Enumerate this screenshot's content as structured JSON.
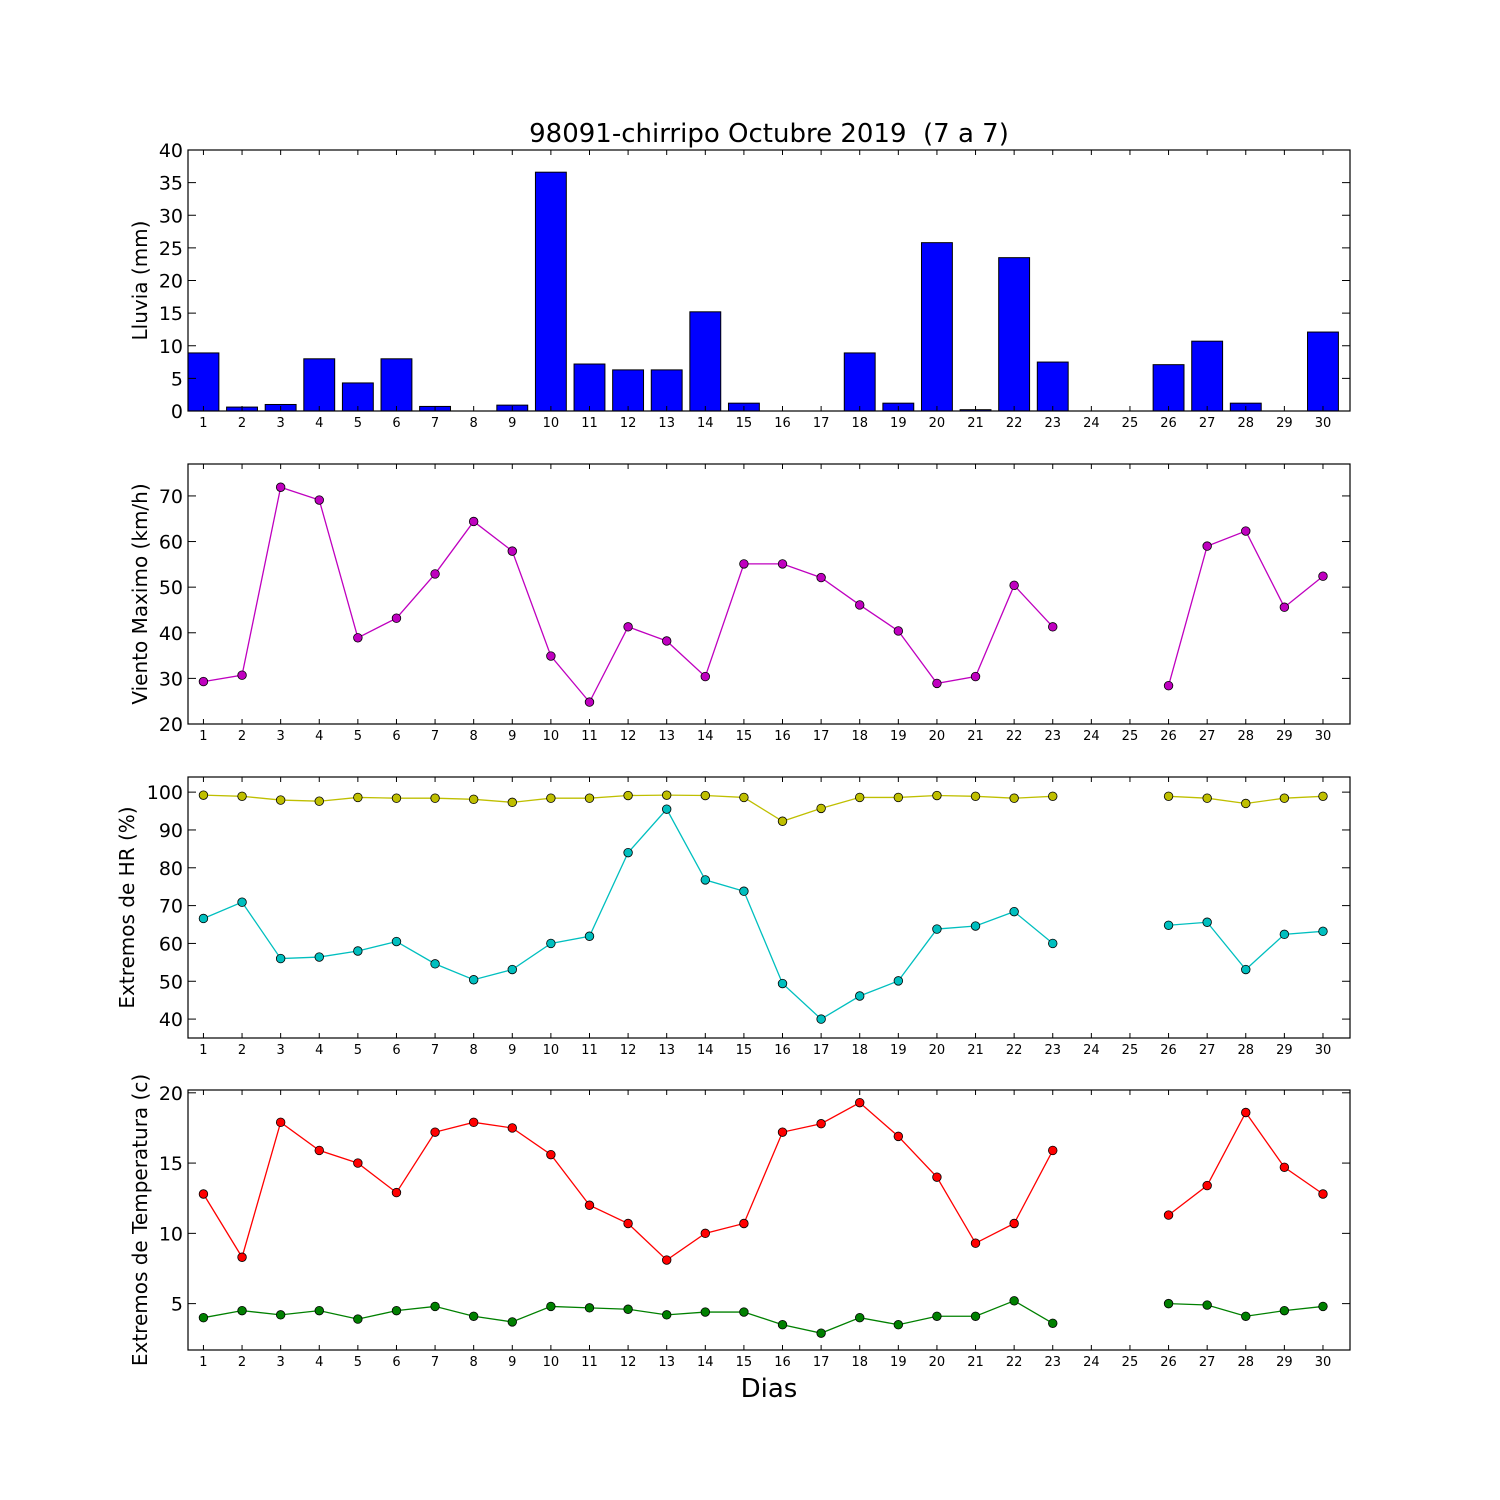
{
  "figure_title": "98091-chirripo Octubre 2019  (7 a 7)",
  "x_label": "Dias",
  "chart_data": [
    {
      "type": "bar",
      "ylabel": "Lluvia (mm)",
      "ylim": [
        0,
        40
      ],
      "yticks": [
        0,
        5,
        10,
        15,
        20,
        25,
        30,
        35,
        40
      ],
      "categories": [
        "1",
        "2",
        "3",
        "4",
        "5",
        "6",
        "7",
        "8",
        "9",
        "10",
        "11",
        "12",
        "13",
        "14",
        "15",
        "16",
        "17",
        "18",
        "19",
        "20",
        "21",
        "22",
        "23",
        "24",
        "25",
        "26",
        "27",
        "28",
        "29",
        "30"
      ],
      "values": [
        8.9,
        0.6,
        1.0,
        8.0,
        4.3,
        8.0,
        0.7,
        0.0,
        0.9,
        36.6,
        7.2,
        6.3,
        6.3,
        15.2,
        1.2,
        0.0,
        0.0,
        8.9,
        1.2,
        25.8,
        0.2,
        23.5,
        7.5,
        0.0,
        0.0,
        7.1,
        10.7,
        1.2,
        0.0,
        12.1
      ],
      "color": "#0000ff"
    },
    {
      "type": "line",
      "ylabel": "Viento Maximo (km/h)",
      "ylim": [
        20,
        77
      ],
      "yticks": [
        20,
        30,
        40,
        50,
        60,
        70
      ],
      "x": [
        "1",
        "2",
        "3",
        "4",
        "5",
        "6",
        "7",
        "8",
        "9",
        "10",
        "11",
        "12",
        "13",
        "14",
        "15",
        "16",
        "17",
        "18",
        "19",
        "20",
        "21",
        "22",
        "23",
        "24",
        "25",
        "26",
        "27",
        "28",
        "29",
        "30"
      ],
      "series": [
        {
          "color": "#bf00bf",
          "values": [
            29.3,
            30.7,
            71.9,
            69.1,
            38.9,
            43.2,
            52.9,
            64.4,
            57.9,
            34.9,
            24.8,
            41.3,
            38.2,
            30.4,
            55.1,
            55.1,
            52.1,
            46.1,
            40.4,
            28.9,
            30.4,
            50.4,
            41.3,
            null,
            null,
            28.4,
            59.0,
            62.3,
            45.6,
            52.4
          ]
        }
      ]
    },
    {
      "type": "line",
      "ylabel": "Extremos de HR (%)",
      "ylim": [
        35,
        104
      ],
      "yticks": [
        40,
        50,
        60,
        70,
        80,
        90,
        100
      ],
      "x": [
        "1",
        "2",
        "3",
        "4",
        "5",
        "6",
        "7",
        "8",
        "9",
        "10",
        "11",
        "12",
        "13",
        "14",
        "15",
        "16",
        "17",
        "18",
        "19",
        "20",
        "21",
        "22",
        "23",
        "24",
        "25",
        "26",
        "27",
        "28",
        "29",
        "30"
      ],
      "series": [
        {
          "color": "#bfbf00",
          "values": [
            99.2,
            98.9,
            97.9,
            97.6,
            98.6,
            98.4,
            98.4,
            98.1,
            97.3,
            98.4,
            98.4,
            99.1,
            99.2,
            99.1,
            98.6,
            92.3,
            95.7,
            98.6,
            98.6,
            99.1,
            98.9,
            98.4,
            98.9,
            null,
            null,
            98.9,
            98.4,
            97.0,
            98.4,
            98.9
          ]
        },
        {
          "color": "#00bfbf",
          "values": [
            66.6,
            70.9,
            56.0,
            56.4,
            58.0,
            60.5,
            54.6,
            50.4,
            53.1,
            60.0,
            61.9,
            84.0,
            95.5,
            76.8,
            73.8,
            49.4,
            40.0,
            46.1,
            50.1,
            63.8,
            64.6,
            68.4,
            60.0,
            null,
            null,
            64.8,
            65.6,
            53.1,
            62.4,
            63.2
          ]
        }
      ]
    },
    {
      "type": "line",
      "ylabel": "Extremos de Temperatura (c)",
      "ylim": [
        1.7,
        20.2
      ],
      "yticks": [
        5,
        10,
        15,
        20
      ],
      "x": [
        "1",
        "2",
        "3",
        "4",
        "5",
        "6",
        "7",
        "8",
        "9",
        "10",
        "11",
        "12",
        "13",
        "14",
        "15",
        "16",
        "17",
        "18",
        "19",
        "20",
        "21",
        "22",
        "23",
        "24",
        "25",
        "26",
        "27",
        "28",
        "29",
        "30"
      ],
      "series": [
        {
          "color": "#ff0000",
          "values": [
            12.8,
            8.3,
            17.9,
            15.9,
            15.0,
            12.9,
            17.2,
            17.9,
            17.5,
            15.6,
            12.0,
            10.7,
            8.1,
            10.0,
            10.7,
            17.2,
            17.8,
            19.3,
            16.9,
            14.0,
            9.3,
            10.7,
            15.9,
            null,
            null,
            11.3,
            13.4,
            18.6,
            14.7,
            12.8
          ]
        },
        {
          "color": "#008000",
          "values": [
            4.0,
            4.5,
            4.2,
            4.5,
            3.9,
            4.5,
            4.8,
            4.1,
            3.7,
            4.8,
            4.7,
            4.6,
            4.2,
            4.4,
            4.4,
            3.5,
            2.9,
            4.0,
            3.5,
            4.1,
            4.1,
            5.2,
            3.6,
            null,
            null,
            5.0,
            4.9,
            4.1,
            4.5,
            4.8
          ]
        }
      ]
    }
  ]
}
